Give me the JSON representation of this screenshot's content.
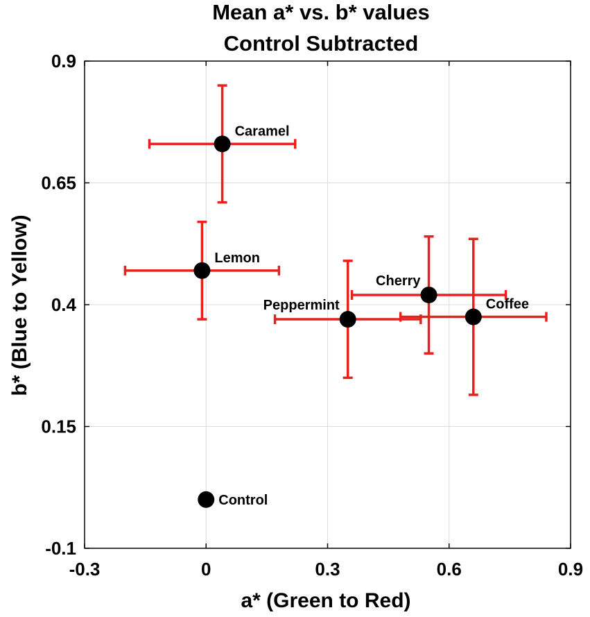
{
  "chart_data": {
    "type": "scatter",
    "title": [
      "Mean a* vs. b* values",
      "Control Subtracted"
    ],
    "xlabel": "a* (Green to Red)",
    "ylabel": "b* (Blue to Yellow)",
    "xlim": [
      -0.3,
      0.9
    ],
    "ylim": [
      -0.1,
      0.9
    ],
    "xticks": [
      -0.3,
      0,
      0.3,
      0.6,
      0.9
    ],
    "yticks": [
      -0.1,
      0.15,
      0.4,
      0.65,
      0.9
    ],
    "xtick_labels": [
      "-0.3",
      "0",
      "0.3",
      "0.6",
      "0.9"
    ],
    "ytick_labels": [
      "-0.1",
      "0.15",
      "0.4",
      "0.65",
      "0.9"
    ],
    "grid": true,
    "marker_color": "#000000",
    "errorbar_color": "#e8201e",
    "points": [
      {
        "label": "Caramel",
        "x": 0.04,
        "y": 0.73,
        "xerr_low": 0.18,
        "xerr_high": 0.18,
        "yerr_low": 0.12,
        "yerr_high": 0.12,
        "label_pos": "upper-right"
      },
      {
        "label": "Lemon",
        "x": -0.01,
        "y": 0.47,
        "xerr_low": 0.19,
        "xerr_high": 0.19,
        "yerr_low": 0.1,
        "yerr_high": 0.1,
        "label_pos": "upper-right"
      },
      {
        "label": "Cherry",
        "x": 0.55,
        "y": 0.42,
        "xerr_low": 0.19,
        "xerr_high": 0.19,
        "yerr_low": 0.12,
        "yerr_high": 0.12,
        "label_pos": "upper-left"
      },
      {
        "label": "Peppermint",
        "x": 0.35,
        "y": 0.37,
        "xerr_low": 0.18,
        "xerr_high": 0.18,
        "yerr_low": 0.12,
        "yerr_high": 0.12,
        "label_pos": "upper-left"
      },
      {
        "label": "Coffee",
        "x": 0.66,
        "y": 0.375,
        "xerr_low": 0.18,
        "xerr_high": 0.18,
        "yerr_low": 0.16,
        "yerr_high": 0.16,
        "label_pos": "upper-right"
      },
      {
        "label": "Control",
        "x": 0.0,
        "y": 0.0,
        "xerr_low": 0,
        "xerr_high": 0,
        "yerr_low": 0,
        "yerr_high": 0,
        "label_pos": "right"
      }
    ]
  }
}
